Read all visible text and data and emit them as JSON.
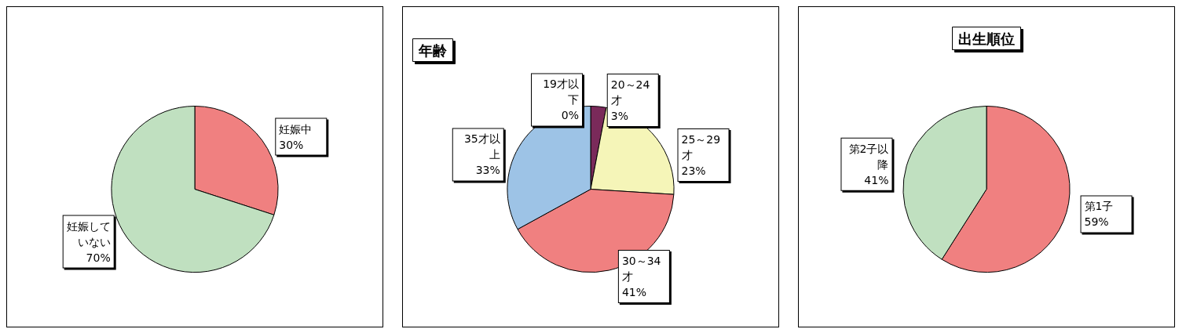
{
  "chart_data": [
    {
      "type": "pie",
      "categories": [
        "妊娠中",
        "妊娠していない"
      ],
      "values": [
        30,
        70
      ],
      "value_labels": [
        "30%",
        "70%"
      ],
      "colors": [
        "#f08080",
        "#c0e0c0"
      ]
    },
    {
      "type": "pie",
      "title": "年齢",
      "categories": [
        "19才以下",
        "20～24才",
        "25～29才",
        "30～34才",
        "35才以上"
      ],
      "values": [
        0,
        3,
        23,
        41,
        33
      ],
      "value_labels": [
        "0%",
        "3%",
        "23%",
        "41%",
        "33%"
      ],
      "colors": [
        "#c0e0c0",
        "#7a2a5a",
        "#f5f5b8",
        "#f08080",
        "#9dc3e6"
      ]
    },
    {
      "type": "pie",
      "title": "出生順位",
      "categories": [
        "第1子",
        "第2子以降"
      ],
      "values": [
        59,
        41
      ],
      "value_labels": [
        "59%",
        "41%"
      ],
      "colors": [
        "#f08080",
        "#c0e0c0"
      ]
    }
  ]
}
